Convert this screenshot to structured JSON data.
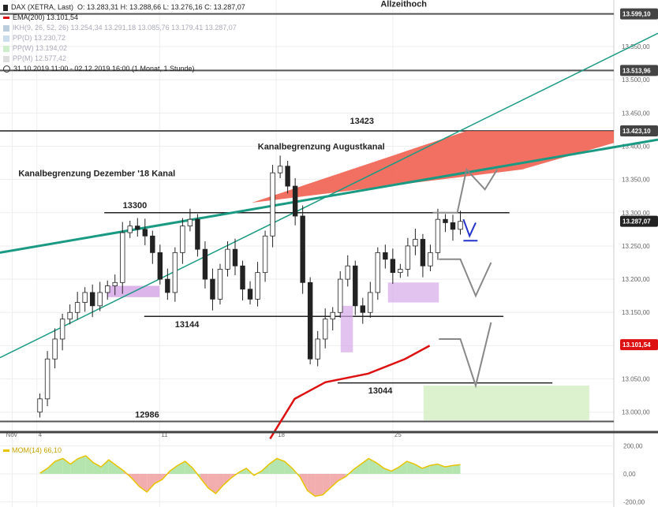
{
  "legend": {
    "instrument": "DAX (XETRA, Last)",
    "ohlc": "O: 13.283,31  H: 13.288,66  L: 13.276,16  C: 13.287,07",
    "ema": "EMA(200) 13.101,54",
    "ikh": "IKH(9, 26, 52, 26) 13.254,34  13.291,18  13.085,76  13.179,41  13.287,07",
    "ppd": "PP(D) 13.230,72",
    "ppw": "PP(W) 13.194,02",
    "ppm": "PP(M) 12.577,42",
    "range": "31.10.2019 11:00 - 02.12.2019 16:00  (1 Monat, 1 Stunde)",
    "mom": "MOM(14) 66,10"
  },
  "colors": {
    "ema": "#dd1111",
    "channel": "#1a9a82",
    "up_candle": "#ffffff",
    "down_candle": "#222222",
    "mom_line": "#e8c400",
    "mom_pos": "#a8e0a0",
    "mom_neg": "#f0a0a0",
    "purple_box": "#d6a8e8",
    "green_box": "#d8efc8",
    "red_wedge": "#f06050"
  },
  "annotations": {
    "allzeithoch": "Allzeithoch",
    "augustkanal": "Kanalbegrenzung Augustkanal",
    "dezember_kanal": "Kanalbegrenzung Dezember '18 Kanal",
    "level_13423": "13423",
    "level_13300": "13300",
    "level_13144": "13144",
    "level_13044": "13044",
    "level_12986": "12986"
  },
  "chart_data": {
    "type": "candlestick",
    "instrument": "DAX (XETRA, Last)",
    "period": "31.10.2019 11:00 - 02.12.2019 16:00",
    "ylim": [
      12970,
      13620
    ],
    "y_ticks": [
      "13.000,00",
      "13.050,00",
      "13.100,00",
      "13.150,00",
      "13.200,00",
      "13.250,00",
      "13.300,00",
      "13.350,00",
      "13.400,00",
      "13.450,00",
      "13.500,00",
      "13.550,00",
      "13.600,00"
    ],
    "x_ticks": [
      "Nov",
      "4",
      "11",
      "18",
      "25"
    ],
    "price_badges": [
      {
        "value": 13599.1,
        "label": "13.599,10",
        "color": "#444444"
      },
      {
        "value": 13513.96,
        "label": "13.513,96",
        "color": "#444444"
      },
      {
        "value": 13423.1,
        "label": "13.423,10",
        "color": "#444444"
      },
      {
        "value": 13287.07,
        "label": "13.287,07",
        "color": "#222222"
      },
      {
        "value": 13101.54,
        "label": "13.101,54",
        "color": "#dd1111"
      }
    ],
    "horizontal_levels": [
      13599.1,
      13513.96,
      13423.1,
      12986
    ],
    "support_resistance": [
      {
        "value": 13300,
        "label": "13300"
      },
      {
        "value": 13144,
        "label": "13144"
      },
      {
        "value": 13044,
        "label": "13044"
      }
    ],
    "close_path": [
      13020,
      13080,
      13110,
      13140,
      13150,
      13165,
      13180,
      13160,
      13180,
      13190,
      13195,
      13270,
      13280,
      13275,
      13265,
      13240,
      13200,
      13180,
      13240,
      13280,
      13290,
      13245,
      13200,
      13170,
      13215,
      13245,
      13220,
      13185,
      13170,
      13210,
      13265,
      13360,
      13370,
      13340,
      13295,
      13195,
      13080,
      13110,
      13140,
      13150,
      13200,
      13220,
      13160,
      13150,
      13180,
      13240,
      13230,
      13210,
      13215,
      13250,
      13260,
      13220,
      13240,
      13290,
      13285,
      13275,
      13287
    ],
    "ema200": [
      [
        0.44,
        12960
      ],
      [
        0.48,
        13020
      ],
      [
        0.53,
        13045
      ],
      [
        0.6,
        13058
      ],
      [
        0.66,
        13080
      ],
      [
        0.7,
        13100
      ]
    ],
    "momentum": {
      "label": "MOM(14) 66,10",
      "value": 66.1,
      "ylim": [
        -220,
        220
      ],
      "y_ticks": [
        "200,00",
        "0,00",
        "-200,00"
      ],
      "series": [
        5,
        40,
        90,
        110,
        70,
        110,
        130,
        80,
        50,
        100,
        60,
        20,
        -30,
        -90,
        -130,
        -70,
        -40,
        20,
        60,
        90,
        40,
        -30,
        -100,
        -140,
        -80,
        -30,
        10,
        40,
        -10,
        20,
        70,
        110,
        90,
        40,
        -20,
        -120,
        -160,
        -150,
        -100,
        -50,
        -20,
        30,
        70,
        110,
        80,
        40,
        20,
        50,
        90,
        70,
        40,
        60,
        70,
        50,
        60,
        66
      ]
    }
  }
}
